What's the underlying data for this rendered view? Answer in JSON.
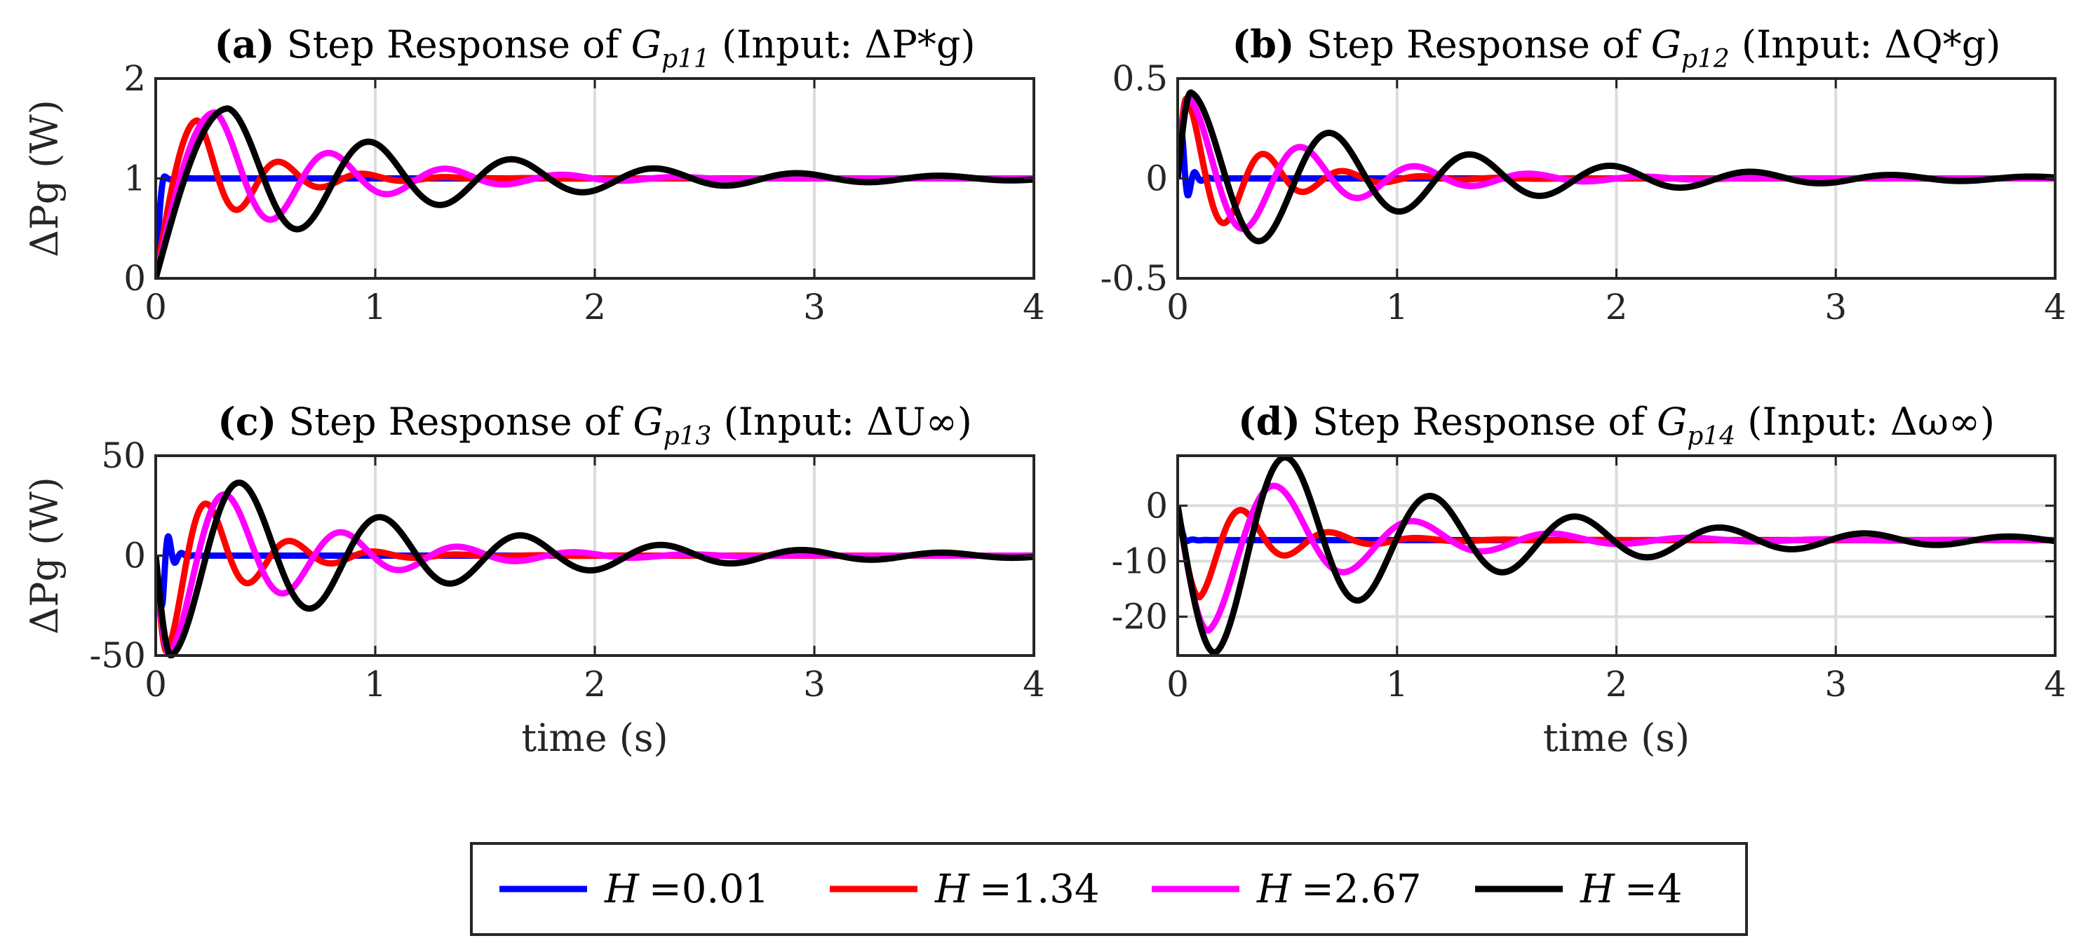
{
  "chart_data": [
    {
      "type": "line",
      "panel": "a",
      "title_prefix": "(a)",
      "title_main": "Step Response of ",
      "title_tail": " (Input: ΔP*g)",
      "title_sym": "Gp11",
      "xlabel": "",
      "ylabel": "ΔPg (W)",
      "xlim": [
        0,
        4
      ],
      "ylim": [
        0,
        2
      ],
      "xticks": [
        "0",
        "1",
        "2",
        "3",
        "4"
      ],
      "yticks": [
        {
          "v": 0,
          "t": "0"
        },
        {
          "v": 1,
          "t": "1"
        },
        {
          "v": 2,
          "t": "2"
        }
      ],
      "dynamics": {
        "steady": 1,
        "initial": 0,
        "kind": "step"
      },
      "series": [
        {
          "name": "H =0.01",
          "color": "#0000ff",
          "peak_time": 0.04,
          "peak_value": 1.02,
          "period": 0.06,
          "decay": 0.04
        },
        {
          "name": "H =1.34",
          "color": "#ff0000",
          "peak_time": 0.19,
          "peak_value": 1.58,
          "period": 0.38,
          "decay": 0.3
        },
        {
          "name": "H =2.67",
          "color": "#ff00ff",
          "peak_time": 0.27,
          "peak_value": 1.66,
          "period": 0.53,
          "decay": 0.55
        },
        {
          "name": "H =4",
          "color": "#000000",
          "peak_time": 0.33,
          "peak_value": 1.7,
          "period": 0.65,
          "decay": 1.0
        }
      ]
    },
    {
      "type": "line",
      "panel": "b",
      "title_prefix": "(b)",
      "title_main": "Step Response of ",
      "title_tail": " (Input: ΔQ*g)",
      "title_sym": "Gp12",
      "xlabel": "",
      "ylabel": "",
      "xlim": [
        0,
        4
      ],
      "ylim": [
        -0.5,
        0.5
      ],
      "xticks": [
        "0",
        "1",
        "2",
        "3",
        "4"
      ],
      "yticks": [
        {
          "v": -0.5,
          "t": "-0.5"
        },
        {
          "v": 0,
          "t": "0"
        },
        {
          "v": 0.5,
          "t": "0.5"
        }
      ],
      "dynamics": {
        "steady": 0,
        "initial": 0,
        "kind": "impulse"
      },
      "series": [
        {
          "name": "H =0.01",
          "color": "#0000ff",
          "peak_time": 0.02,
          "peak_value": 0.22,
          "period": 0.06,
          "decay": 0.03
        },
        {
          "name": "H =1.34",
          "color": "#ff0000",
          "peak_time": 0.04,
          "peak_value": 0.4,
          "period": 0.36,
          "decay": 0.3
        },
        {
          "name": "H =2.67",
          "color": "#ff00ff",
          "peak_time": 0.05,
          "peak_value": 0.4,
          "period": 0.52,
          "decay": 0.55
        },
        {
          "name": "H =4",
          "color": "#000000",
          "peak_time": 0.06,
          "peak_value": 0.43,
          "period": 0.64,
          "decay": 1.0
        }
      ]
    },
    {
      "type": "line",
      "panel": "c",
      "title_prefix": "(c)",
      "title_main": "Step Response of ",
      "title_tail": " (Input: ΔU∞)",
      "title_sym": "Gp13",
      "xlabel": "time (s)",
      "ylabel": "ΔPg (W)",
      "xlim": [
        0,
        4
      ],
      "ylim": [
        -50,
        50
      ],
      "xticks": [
        "0",
        "1",
        "2",
        "3",
        "4"
      ],
      "yticks": [
        {
          "v": -50,
          "t": "-50"
        },
        {
          "v": 0,
          "t": "0"
        },
        {
          "v": 50,
          "t": "50"
        }
      ],
      "dynamics": {
        "steady": 0,
        "initial": 0,
        "kind": "bipolar"
      },
      "series": [
        {
          "name": "H =0.01",
          "color": "#0000ff",
          "peak_time": 0.03,
          "peak_value": -25,
          "period": 0.06,
          "decay": 0.03
        },
        {
          "name": "H =1.34",
          "color": "#ff0000",
          "peak_time": 0.05,
          "peak_value": -48,
          "period": 0.38,
          "decay": 0.3
        },
        {
          "name": "H =2.67",
          "color": "#ff00ff",
          "peak_time": 0.06,
          "peak_value": -49,
          "period": 0.53,
          "decay": 0.55
        },
        {
          "name": "H =4",
          "color": "#000000",
          "peak_time": 0.07,
          "peak_value": -50,
          "period": 0.64,
          "decay": 1.0
        }
      ]
    },
    {
      "type": "line",
      "panel": "d",
      "title_prefix": "(d)",
      "title_main": "Step Response of ",
      "title_tail": " (Input: Δω∞)",
      "title_sym": "Gp14",
      "xlabel": "time (s)",
      "ylabel": "",
      "xlim": [
        0,
        4
      ],
      "ylim": [
        -27,
        9
      ],
      "xticks": [
        "0",
        "1",
        "2",
        "3",
        "4"
      ],
      "yticks": [
        {
          "v": -20,
          "t": "-20"
        },
        {
          "v": -10,
          "t": "-10"
        },
        {
          "v": 0,
          "t": "0"
        }
      ],
      "dynamics": {
        "steady": -6.2,
        "initial": 0,
        "kind": "step"
      },
      "series": [
        {
          "name": "H =0.01",
          "color": "#0000ff",
          "peak_time": 0.04,
          "peak_value": -6.4,
          "period": 0.06,
          "decay": 0.04
        },
        {
          "name": "H =1.34",
          "color": "#ff0000",
          "peak_time": 0.1,
          "peak_value": -16.5,
          "period": 0.4,
          "decay": 0.3
        },
        {
          "name": "H =2.67",
          "color": "#ff00ff",
          "peak_time": 0.14,
          "peak_value": -22.5,
          "period": 0.63,
          "decay": 0.6
        },
        {
          "name": "H =4",
          "color": "#000000",
          "peak_time": 0.17,
          "peak_value": -26.5,
          "period": 0.66,
          "decay": 1.05
        }
      ]
    }
  ],
  "legend": {
    "items": [
      {
        "prefix": "H",
        "value": "=0.01",
        "color": "#0000ff"
      },
      {
        "prefix": "H",
        "value": "=1.34",
        "color": "#ff0000"
      },
      {
        "prefix": "H",
        "value": "=2.67",
        "color": "#ff00ff"
      },
      {
        "prefix": "H",
        "value": "=4",
        "color": "#000000"
      }
    ]
  }
}
